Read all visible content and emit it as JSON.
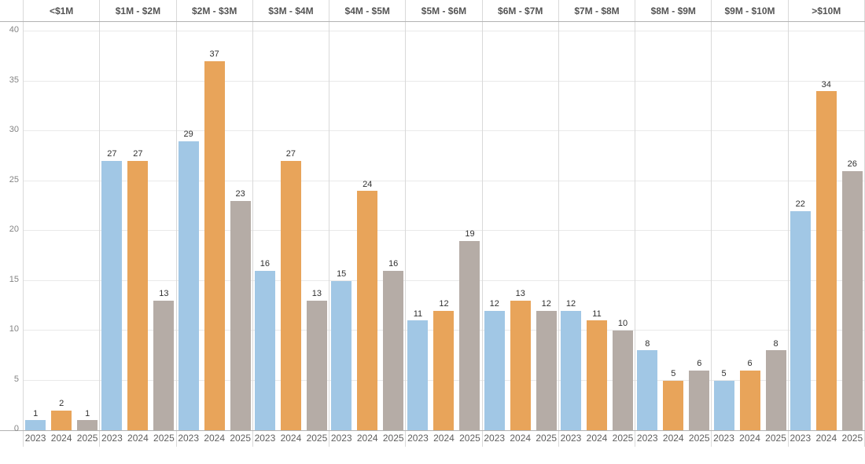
{
  "chart_data": {
    "type": "bar",
    "title": "",
    "xlabel": "",
    "ylabel": "",
    "categories": [
      "<$1M",
      "$1M - $2M",
      "$2M - $3M",
      "$3M - $4M",
      "$4M - $5M",
      "$5M - $6M",
      "$6M - $7M",
      "$7M - $8M",
      "$8M - $9M",
      "$9M - $10M",
      ">$10M"
    ],
    "series": [
      {
        "name": "2023",
        "color": "#a1c7e5",
        "values": [
          1,
          27,
          29,
          16,
          15,
          11,
          12,
          12,
          8,
          5,
          22
        ]
      },
      {
        "name": "2024",
        "color": "#e8a45a",
        "values": [
          2,
          27,
          37,
          27,
          24,
          12,
          13,
          11,
          5,
          6,
          34
        ]
      },
      {
        "name": "2025",
        "color": "#b5aca6",
        "values": [
          1,
          13,
          23,
          13,
          16,
          19,
          12,
          10,
          6,
          8,
          26
        ]
      }
    ],
    "ylim": [
      0,
      40
    ],
    "yticks": [
      0,
      5,
      10,
      15,
      20,
      25,
      30,
      35,
      40
    ],
    "grid": true,
    "legend": "none",
    "bar_labels": true
  },
  "colors": {
    "bar_2023": "#a1c7e5",
    "bar_2024": "#e8a45a",
    "bar_2025": "#b5aca6",
    "gridline": "#e9e9e9",
    "panel_separator": "#d9d9d9",
    "axis_line": "#b3b3b3",
    "header_text": "#545454",
    "tick_text": "#848484",
    "value_label_text": "#303030",
    "year_label_text": "#5e5e5e",
    "background": "#ffffff"
  }
}
